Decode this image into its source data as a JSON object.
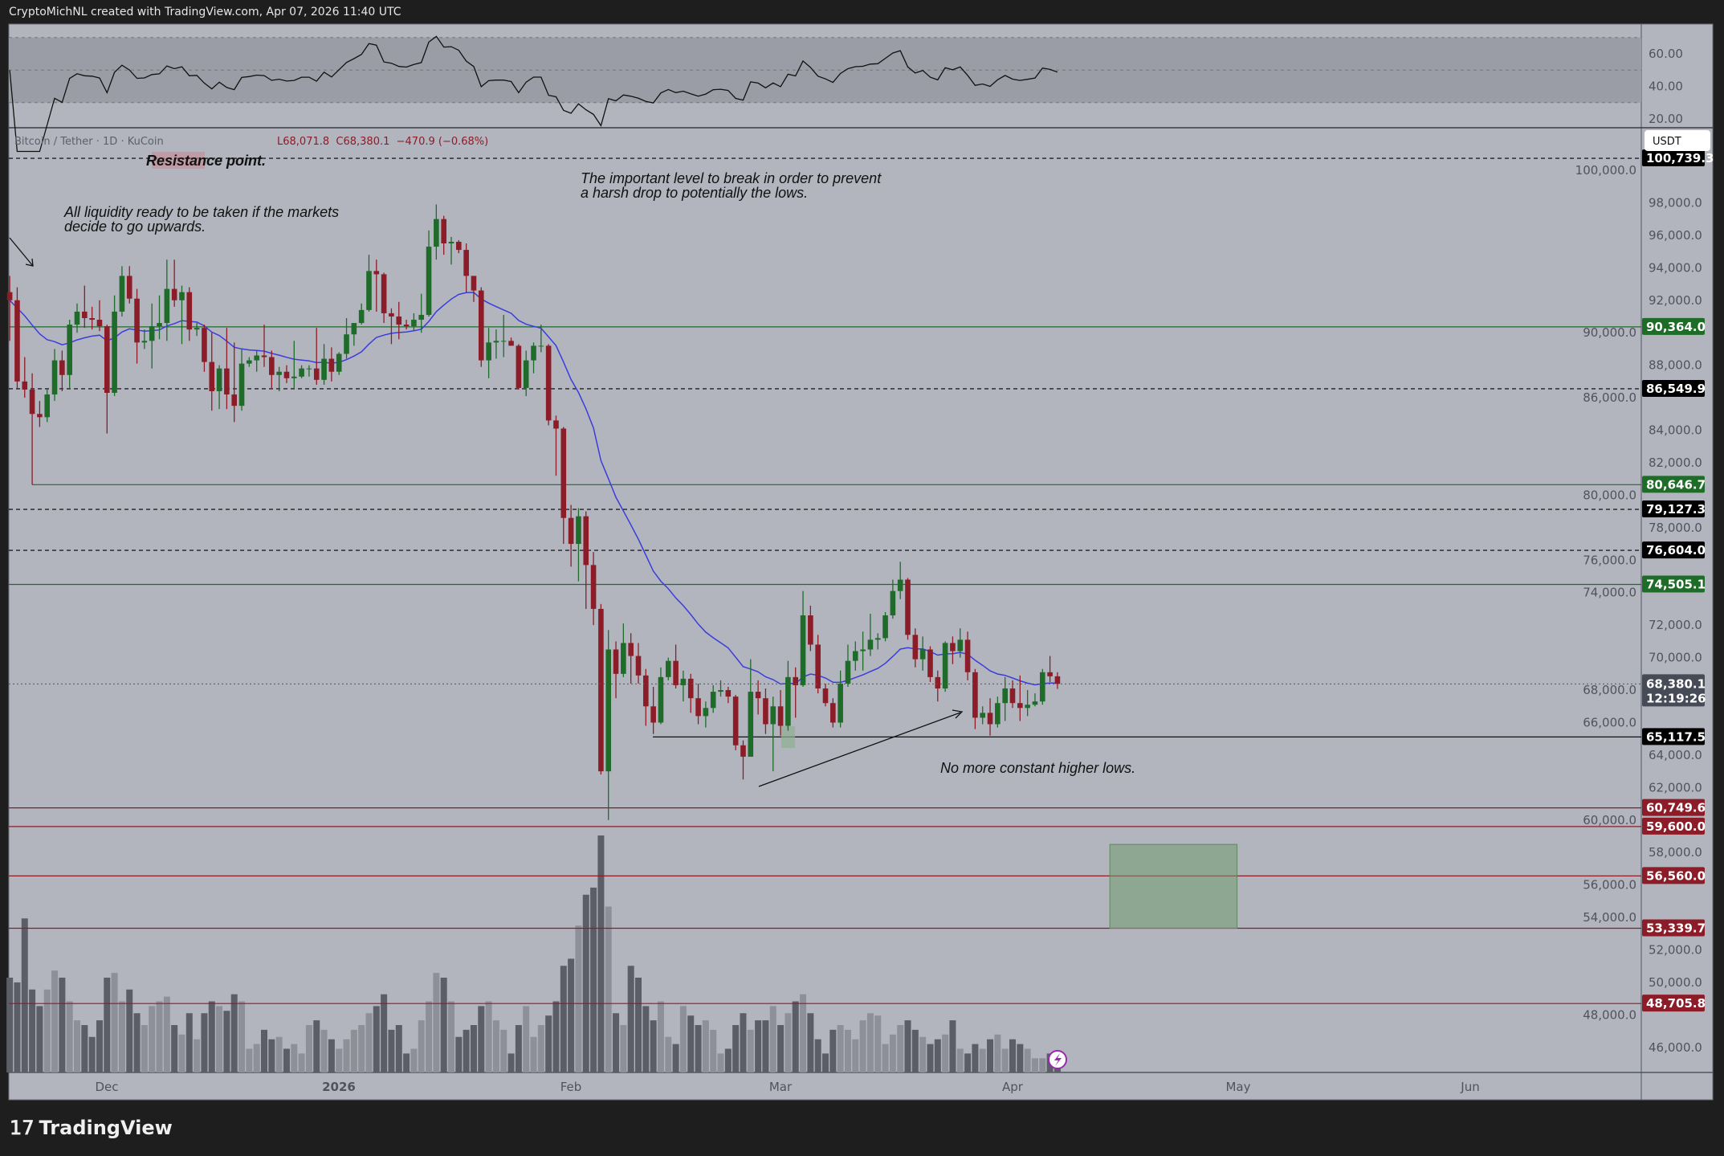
{
  "header": {
    "credit": "CryptoMichNL created with TradingView.com, Apr 07, 2026 11:40 UTC"
  },
  "footer": {
    "brand": "TradingView"
  },
  "legend": {
    "symbol": "Bitcoin / Tether · 1D · KuCoin",
    "ohlc_visible": "L68,071.8  C68,380.1  −470.9 (−0.68%)"
  },
  "currency_button": "USDT",
  "colors": {
    "background": "#b2b5be",
    "up": "#1e6b2a",
    "down": "#8c1c28",
    "ma_line": "#3c3cdc",
    "green_level": "#1f6b28",
    "red_level": "#8c1c28",
    "black_level": "#000000"
  },
  "annotations": [
    {
      "text": "Resistance point."
    },
    {
      "text": "All liquidity ready to be taken if the markets",
      "text2": "decide to go upwards."
    },
    {
      "text": "The important level to break in order to prevent",
      "text2": "a harsh drop to potentially the lows."
    },
    {
      "text": "No more constant higher lows."
    }
  ],
  "rsi_axis": [
    "60.00",
    "40.00",
    "20.00"
  ],
  "price_axis": [
    "100,000.0",
    "98,000.0",
    "96,000.0",
    "94,000.0",
    "92,000.0",
    "90,000.0",
    "88,000.0",
    "86,000.0",
    "84,000.0",
    "82,000.0",
    "80,000.0",
    "78,000.0",
    "76,000.0",
    "74,000.0",
    "72,000.0",
    "70,000.0",
    "68,000.0",
    "66,000.0",
    "64,000.0",
    "62,000.0",
    "60,000.0",
    "58,000.0",
    "56,000.0",
    "54,000.0",
    "52,000.0",
    "50,000.0",
    "48,000.0",
    "46,000.0"
  ],
  "time_axis": [
    "Dec",
    "2026",
    "Feb",
    "Mar",
    "Apr",
    "May",
    "Jun"
  ],
  "levels": [
    {
      "price": 100739.3,
      "label": "100,739.3",
      "style": "dashed",
      "color": "black"
    },
    {
      "price": 90364.0,
      "label": "90,364.0",
      "style": "solid",
      "color": "green"
    },
    {
      "price": 86549.9,
      "label": "86,549.9",
      "style": "dashed",
      "color": "black"
    },
    {
      "price": 80646.7,
      "label": "80,646.7",
      "style": "solid",
      "color": "green"
    },
    {
      "price": 79127.3,
      "label": "79,127.3",
      "style": "dashed",
      "color": "black"
    },
    {
      "price": 76604.0,
      "label": "76,604.0",
      "style": "dashed",
      "color": "black"
    },
    {
      "price": 74505.1,
      "label": "74,505.1",
      "style": "solid",
      "color": "green"
    },
    {
      "price": 65117.5,
      "label": "65,117.5",
      "style": "solid",
      "color": "black"
    },
    {
      "price": 60749.6,
      "label": "60,749.6",
      "style": "solid",
      "color": "red"
    },
    {
      "price": 59600.0,
      "label": "59,600.0",
      "style": "solid",
      "color": "red"
    },
    {
      "price": 56560.0,
      "label": "56,560.0",
      "style": "solid",
      "color": "red"
    },
    {
      "price": 53339.7,
      "label": "53,339.7",
      "style": "solid",
      "color": "red"
    },
    {
      "price": 48705.8,
      "label": "48,705.8",
      "style": "solid",
      "color": "red"
    }
  ],
  "last_price": {
    "price": 68380.1,
    "label": "68,380.1",
    "countdown": "12:19:26"
  },
  "target_zone": {
    "from": "2026-04-14",
    "to": "2026-05-01",
    "top": 58500,
    "bottom": 53339.7
  },
  "chart_data": {
    "type": "candlestick",
    "indicators": [
      "RSI",
      "moving average",
      "volume"
    ],
    "rsi_band": [
      30,
      70
    ],
    "candles_columns": [
      "date",
      "open",
      "high",
      "low",
      "close",
      "volume_relative"
    ],
    "candles": [
      [
        "2025-11-18",
        92500,
        93500,
        89500,
        92000,
        40
      ],
      [
        "2025-11-19",
        92000,
        92800,
        86500,
        87000,
        38
      ],
      [
        "2025-11-20",
        87000,
        88500,
        86000,
        86500,
        65
      ],
      [
        "2025-11-21",
        86500,
        87500,
        80650,
        85000,
        35
      ],
      [
        "2025-11-22",
        85000,
        85800,
        84200,
        84800,
        28
      ],
      [
        "2025-11-23",
        84800,
        86500,
        84500,
        86200,
        35
      ],
      [
        "2025-11-24",
        86200,
        89000,
        85800,
        88300,
        43
      ],
      [
        "2025-11-25",
        88300,
        88900,
        86400,
        87400,
        40
      ],
      [
        "2025-11-26",
        87400,
        90800,
        86600,
        90500,
        30
      ],
      [
        "2025-11-27",
        90500,
        91800,
        90000,
        91300,
        22
      ],
      [
        "2025-11-28",
        91300,
        92900,
        90300,
        90900,
        20
      ],
      [
        "2025-11-29",
        90900,
        91600,
        90200,
        90800,
        15
      ],
      [
        "2025-11-30",
        90800,
        92000,
        90100,
        90400,
        22
      ],
      [
        "2025-12-01",
        90400,
        90500,
        83800,
        86300,
        40
      ],
      [
        "2025-12-02",
        86300,
        92300,
        86100,
        91300,
        42
      ],
      [
        "2025-12-03",
        91300,
        94100,
        91000,
        93500,
        30
      ],
      [
        "2025-12-04",
        93500,
        94100,
        91800,
        92100,
        35
      ],
      [
        "2025-12-05",
        92100,
        92700,
        88100,
        89400,
        25
      ],
      [
        "2025-12-06",
        89400,
        90200,
        89000,
        89500,
        20
      ],
      [
        "2025-12-07",
        89500,
        91800,
        87800,
        90400,
        28
      ],
      [
        "2025-12-08",
        90400,
        92300,
        89600,
        90600,
        30
      ],
      [
        "2025-12-09",
        90600,
        94500,
        89500,
        92700,
        32
      ],
      [
        "2025-12-10",
        92700,
        94500,
        91600,
        92000,
        20
      ],
      [
        "2025-12-11",
        92000,
        92900,
        89300,
        92500,
        16
      ],
      [
        "2025-12-12",
        92500,
        92800,
        89500,
        90200,
        25
      ],
      [
        "2025-12-13",
        90200,
        90600,
        89800,
        90300,
        14
      ],
      [
        "2025-12-14",
        90300,
        90500,
        87600,
        88200,
        25
      ],
      [
        "2025-12-15",
        88200,
        90000,
        85200,
        86400,
        30
      ],
      [
        "2025-12-16",
        86400,
        88000,
        85300,
        87800,
        28
      ],
      [
        "2025-12-17",
        87800,
        90300,
        85300,
        86200,
        26
      ],
      [
        "2025-12-18",
        86200,
        89400,
        84500,
        85500,
        33
      ],
      [
        "2025-12-19",
        85500,
        89000,
        85200,
        88100,
        30
      ],
      [
        "2025-12-20",
        88100,
        88500,
        87900,
        88300,
        10
      ],
      [
        "2025-12-21",
        88300,
        88900,
        87600,
        88600,
        12
      ],
      [
        "2025-12-22",
        88600,
        90500,
        87900,
        88500,
        18
      ],
      [
        "2025-12-23",
        88500,
        88900,
        86600,
        87400,
        14
      ],
      [
        "2025-12-24",
        87400,
        87900,
        86400,
        87600,
        15
      ],
      [
        "2025-12-25",
        87600,
        88000,
        86900,
        87200,
        10
      ],
      [
        "2025-12-26",
        87200,
        89500,
        86600,
        87300,
        12
      ],
      [
        "2025-12-27",
        87300,
        88000,
        87200,
        87800,
        8
      ],
      [
        "2025-12-28",
        87800,
        88000,
        87300,
        87800,
        20
      ],
      [
        "2025-12-29",
        87800,
        90300,
        86800,
        87100,
        22
      ],
      [
        "2025-12-30",
        87100,
        89300,
        86800,
        88400,
        18
      ],
      [
        "2025-12-31",
        88400,
        89100,
        87000,
        87600,
        14
      ],
      [
        "2026-01-01",
        87600,
        88800,
        87400,
        88700,
        10
      ],
      [
        "2026-01-02",
        88700,
        90900,
        88400,
        89900,
        14
      ],
      [
        "2026-01-03",
        89900,
        90600,
        89200,
        90600,
        18
      ],
      [
        "2026-01-04",
        90600,
        91800,
        90500,
        91400,
        20
      ],
      [
        "2026-01-05",
        91400,
        94800,
        91300,
        93800,
        25
      ],
      [
        "2026-01-06",
        93800,
        94500,
        91300,
        93600,
        28
      ],
      [
        "2026-01-07",
        93600,
        93700,
        90600,
        91200,
        33
      ],
      [
        "2026-01-08",
        91200,
        91500,
        89300,
        91000,
        18
      ],
      [
        "2026-01-09",
        91000,
        91900,
        89600,
        90500,
        20
      ],
      [
        "2026-01-10",
        90500,
        90800,
        90200,
        90400,
        8
      ],
      [
        "2026-01-11",
        90400,
        91200,
        90100,
        90800,
        10
      ],
      [
        "2026-01-12",
        90800,
        92400,
        90000,
        91100,
        22
      ],
      [
        "2026-01-13",
        91100,
        96300,
        91000,
        95300,
        30
      ],
      [
        "2026-01-14",
        95300,
        97900,
        94500,
        97000,
        42
      ],
      [
        "2026-01-15",
        97000,
        97200,
        94800,
        95500,
        40
      ],
      [
        "2026-01-16",
        95500,
        95900,
        94200,
        95600,
        30
      ],
      [
        "2026-01-17",
        95600,
        95700,
        94900,
        95100,
        15
      ],
      [
        "2026-01-18",
        95100,
        95500,
        92500,
        93500,
        18
      ],
      [
        "2026-01-19",
        93500,
        93500,
        91900,
        92600,
        20
      ],
      [
        "2026-01-20",
        92600,
        92800,
        87900,
        88300,
        28
      ],
      [
        "2026-01-21",
        88300,
        90300,
        87200,
        89400,
        30
      ],
      [
        "2026-01-22",
        89400,
        90200,
        88400,
        89500,
        22
      ],
      [
        "2026-01-23",
        89500,
        91100,
        88500,
        89500,
        18
      ],
      [
        "2026-01-24",
        89500,
        89700,
        89200,
        89200,
        8
      ],
      [
        "2026-01-25",
        89200,
        89300,
        86500,
        86600,
        20
      ],
      [
        "2026-01-26",
        86600,
        88900,
        86100,
        88300,
        28
      ],
      [
        "2026-01-27",
        88300,
        89400,
        87500,
        89200,
        15
      ],
      [
        "2026-01-28",
        89200,
        90500,
        88800,
        89200,
        20
      ],
      [
        "2026-01-29",
        89200,
        89300,
        84300,
        84600,
        24
      ],
      [
        "2026-01-30",
        84600,
        84900,
        81200,
        84100,
        30
      ],
      [
        "2026-01-31",
        84100,
        84200,
        77000,
        78600,
        45
      ],
      [
        "2026-02-01",
        78600,
        79400,
        75600,
        77000,
        48
      ],
      [
        "2026-02-02",
        77000,
        79200,
        74700,
        78700,
        62
      ],
      [
        "2026-02-03",
        78700,
        79000,
        73000,
        75700,
        75
      ],
      [
        "2026-02-04",
        75700,
        76500,
        72000,
        73000,
        78
      ],
      [
        "2026-02-05",
        73000,
        73300,
        62800,
        63000,
        100
      ],
      [
        "2026-02-06",
        63000,
        71700,
        60000,
        70500,
        70
      ],
      [
        "2026-02-07",
        70500,
        71000,
        67500,
        69000,
        25
      ],
      [
        "2026-02-08",
        69000,
        72100,
        68800,
        70900,
        20
      ],
      [
        "2026-02-09",
        70900,
        71500,
        68400,
        70100,
        45
      ],
      [
        "2026-02-10",
        70100,
        70900,
        68400,
        68900,
        40
      ],
      [
        "2026-02-11",
        68900,
        69300,
        65800,
        67000,
        28
      ],
      [
        "2026-02-12",
        67000,
        68200,
        65300,
        66000,
        22
      ],
      [
        "2026-02-13",
        66000,
        69400,
        65900,
        68800,
        30
      ],
      [
        "2026-02-14",
        68800,
        70000,
        68600,
        69800,
        15
      ],
      [
        "2026-02-15",
        69800,
        70800,
        68100,
        68300,
        12
      ],
      [
        "2026-02-16",
        68300,
        69200,
        67300,
        68700,
        28
      ],
      [
        "2026-02-17",
        68700,
        69000,
        66600,
        67500,
        24
      ],
      [
        "2026-02-18",
        67500,
        68400,
        65900,
        66400,
        20
      ],
      [
        "2026-02-19",
        66400,
        67300,
        65700,
        66900,
        22
      ],
      [
        "2026-02-20",
        66900,
        68300,
        66600,
        67900,
        18
      ],
      [
        "2026-02-21",
        67900,
        68600,
        67600,
        68000,
        8
      ],
      [
        "2026-02-22",
        68000,
        68200,
        67200,
        67600,
        10
      ],
      [
        "2026-02-23",
        67600,
        67700,
        64300,
        64600,
        20
      ],
      [
        "2026-02-24",
        64600,
        64900,
        62500,
        63900,
        25
      ],
      [
        "2026-02-25",
        63900,
        69900,
        63900,
        67900,
        18
      ],
      [
        "2026-02-26",
        67900,
        68600,
        66500,
        67500,
        22
      ],
      [
        "2026-02-27",
        67500,
        68100,
        65300,
        65900,
        22
      ],
      [
        "2026-02-28",
        65900,
        67600,
        63000,
        67000,
        28
      ],
      [
        "2026-03-01",
        67000,
        68000,
        65200,
        65800,
        20
      ],
      [
        "2026-03-02",
        65800,
        69800,
        65500,
        68800,
        25
      ],
      [
        "2026-03-03",
        68800,
        69400,
        66300,
        68300,
        30
      ],
      [
        "2026-03-04",
        68300,
        74100,
        68200,
        72600,
        33
      ],
      [
        "2026-03-05",
        72600,
        73200,
        70400,
        70800,
        25
      ],
      [
        "2026-03-06",
        70800,
        71400,
        67800,
        68100,
        14
      ],
      [
        "2026-03-07",
        68100,
        68400,
        67000,
        67200,
        8
      ],
      [
        "2026-03-08",
        67200,
        67500,
        65700,
        66000,
        18
      ],
      [
        "2026-03-09",
        66000,
        69200,
        65700,
        68400,
        20
      ],
      [
        "2026-03-10",
        68400,
        70800,
        68200,
        69800,
        18
      ],
      [
        "2026-03-11",
        69800,
        71000,
        69200,
        70400,
        14
      ],
      [
        "2026-03-12",
        70400,
        71600,
        69200,
        70500,
        22
      ],
      [
        "2026-03-13",
        70500,
        72700,
        70100,
        71100,
        25
      ],
      [
        "2026-03-14",
        71100,
        71500,
        70500,
        71200,
        24
      ],
      [
        "2026-03-15",
        71200,
        72800,
        71000,
        72600,
        12
      ],
      [
        "2026-03-16",
        72600,
        74800,
        72400,
        74100,
        16
      ],
      [
        "2026-03-17",
        74100,
        75900,
        73600,
        74800,
        20
      ],
      [
        "2026-03-18",
        74800,
        74900,
        71100,
        71400,
        22
      ],
      [
        "2026-03-19",
        71400,
        71800,
        69400,
        69900,
        18
      ],
      [
        "2026-03-20",
        69900,
        71300,
        69200,
        70500,
        15
      ],
      [
        "2026-03-21",
        70500,
        70700,
        68500,
        68800,
        12
      ],
      [
        "2026-03-22",
        68800,
        69200,
        67300,
        68100,
        14
      ],
      [
        "2026-03-23",
        68100,
        71000,
        67900,
        70900,
        16
      ],
      [
        "2026-03-24",
        70900,
        71300,
        69600,
        70400,
        22
      ],
      [
        "2026-03-25",
        70400,
        71800,
        70000,
        71100,
        10
      ],
      [
        "2026-03-26",
        71100,
        71600,
        68600,
        69100,
        8
      ],
      [
        "2026-03-27",
        69100,
        69300,
        65600,
        66300,
        12
      ],
      [
        "2026-03-28",
        66300,
        67000,
        65900,
        66600,
        10
      ],
      [
        "2026-03-29",
        66600,
        67500,
        65200,
        65900,
        14
      ],
      [
        "2026-03-30",
        65900,
        67600,
        65700,
        67200,
        16
      ],
      [
        "2026-03-31",
        67200,
        68800,
        66100,
        68100,
        10
      ],
      [
        "2026-04-01",
        68100,
        68600,
        66900,
        67200,
        14
      ],
      [
        "2026-04-02",
        67200,
        68900,
        66100,
        66900,
        12
      ],
      [
        "2026-04-03",
        66900,
        68000,
        66400,
        67100,
        10
      ],
      [
        "2026-04-04",
        67100,
        67800,
        67000,
        67300,
        6
      ],
      [
        "2026-04-05",
        67300,
        69300,
        67100,
        69100,
        6
      ],
      [
        "2026-04-06",
        69100,
        70100,
        68500,
        68850,
        8
      ],
      [
        "2026-04-07",
        68850,
        69100,
        68071.8,
        68380.1,
        4
      ]
    ]
  }
}
